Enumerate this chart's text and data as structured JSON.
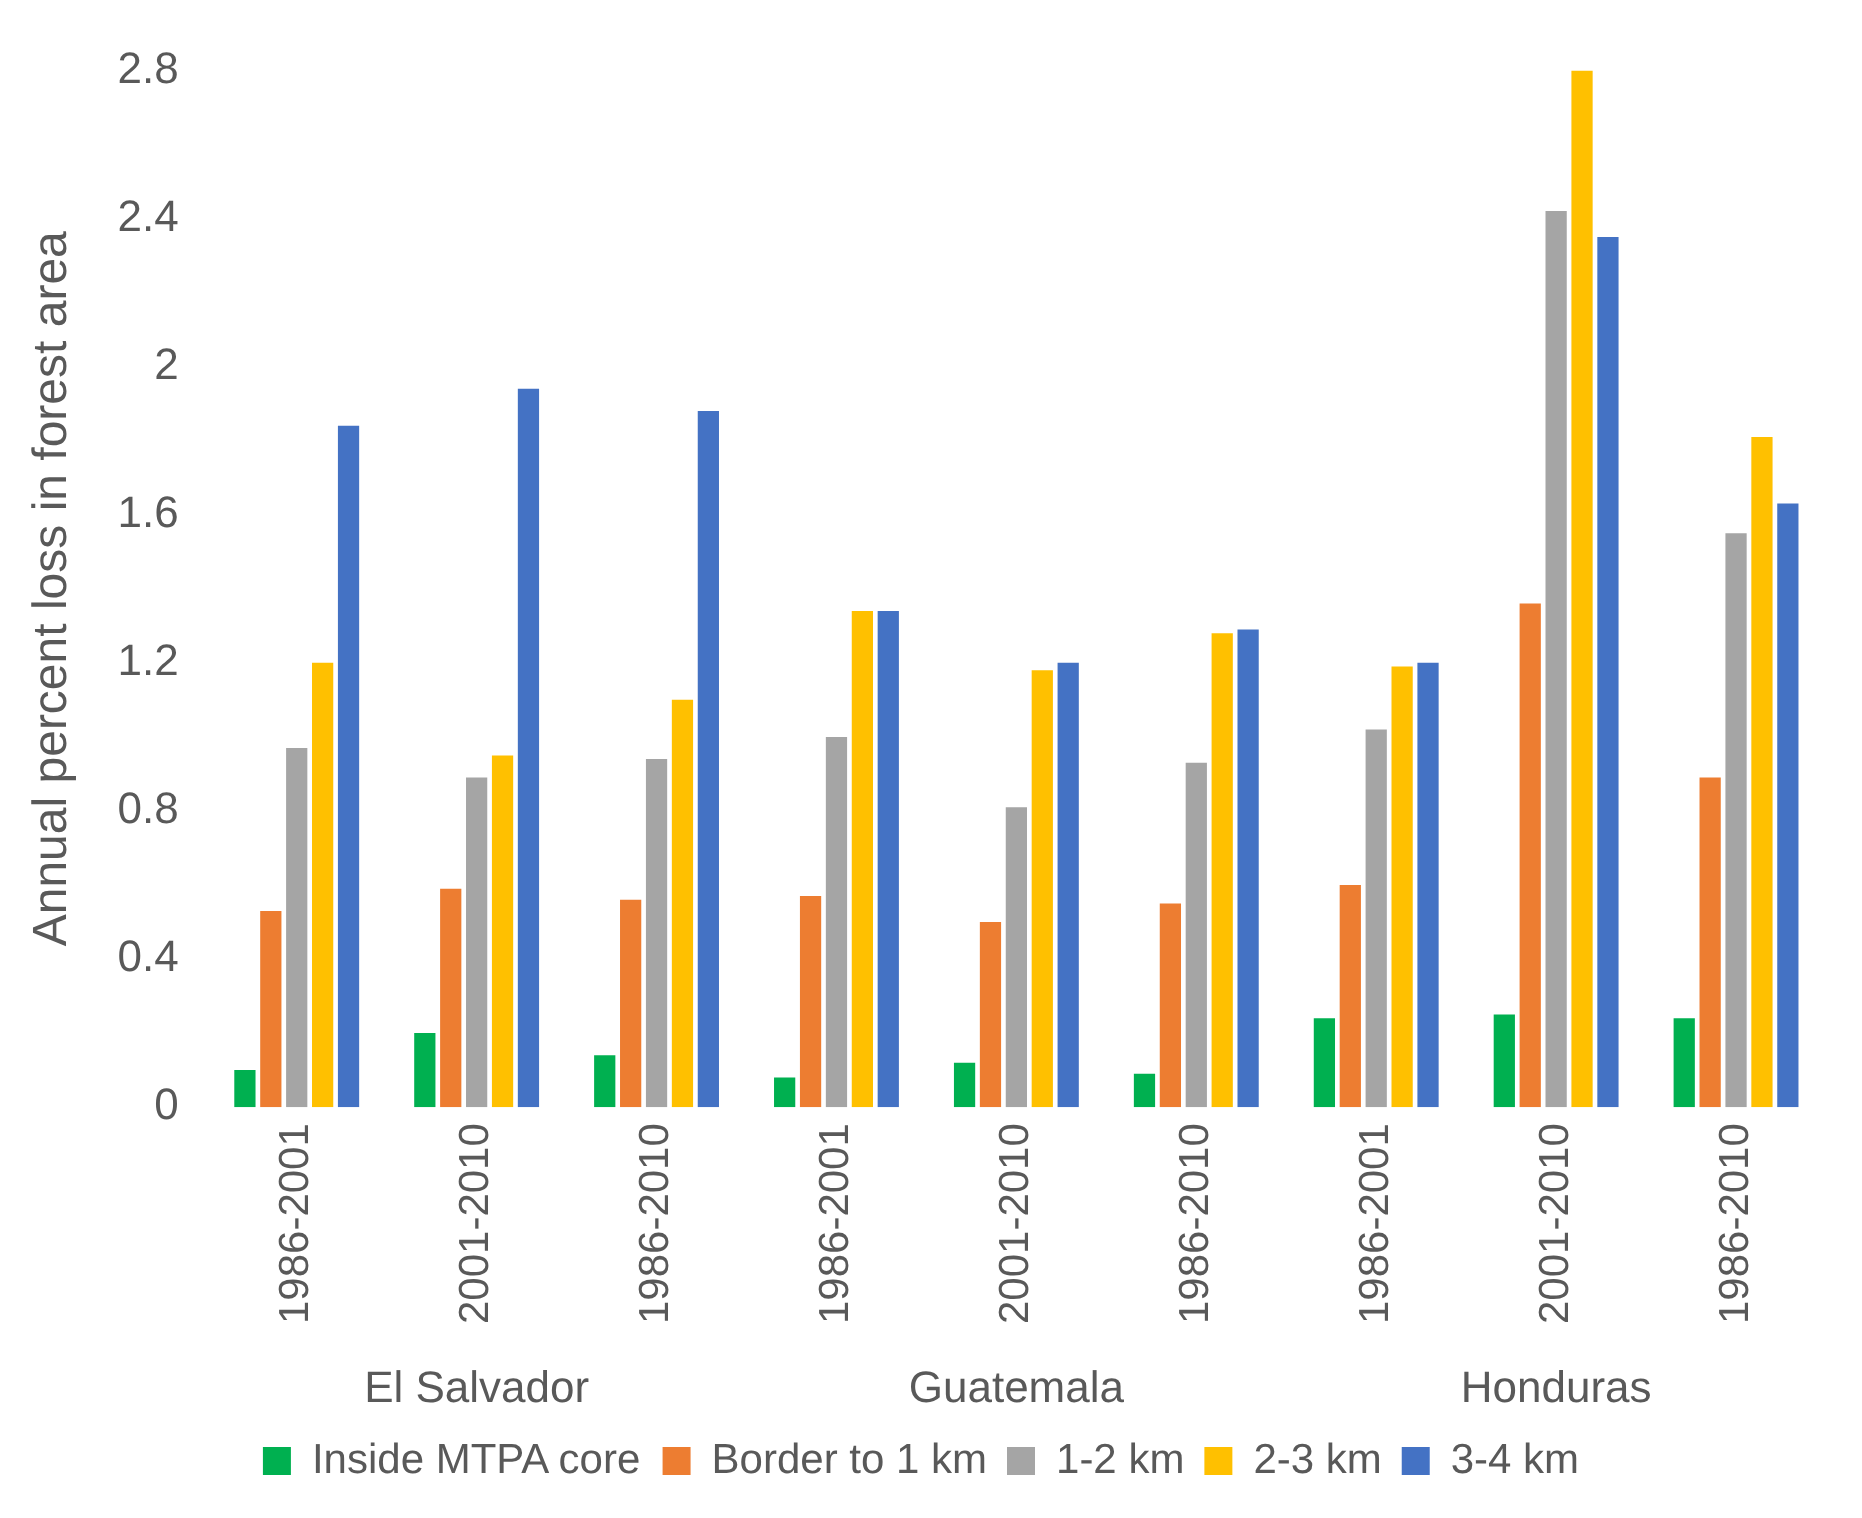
{
  "chart_data": {
    "type": "bar",
    "ylabel": "Annual percent loss in forest area",
    "categories": [
      "1986-2001",
      "2001-2010",
      "1986-2010",
      "1986-2001",
      "2001-2010",
      "1986-2010",
      "1986-2001",
      "2001-2010",
      "1986-2010"
    ],
    "series": [
      {
        "name": "Inside MTPA core",
        "color": "#00b050",
        "values": [
          0.1,
          0.2,
          0.14,
          0.08,
          0.12,
          0.09,
          0.24,
          0.25,
          0.24
        ]
      },
      {
        "name": "Border to 1 km",
        "color": "#ed7d31",
        "values": [
          0.53,
          0.59,
          0.56,
          0.57,
          0.5,
          0.55,
          0.6,
          1.36,
          0.89
        ]
      },
      {
        "name": "1-2 km",
        "color": "#a5a5a5",
        "values": [
          0.97,
          0.89,
          0.94,
          1.0,
          0.81,
          0.93,
          1.02,
          2.42,
          1.55
        ]
      },
      {
        "name": "2-3 km",
        "color": "#ffc000",
        "values": [
          1.2,
          0.95,
          1.1,
          1.34,
          1.18,
          1.28,
          1.19,
          2.8,
          1.81
        ]
      },
      {
        "name": "3-4 km",
        "color": "#4472c4",
        "values": [
          1.84,
          1.94,
          1.88,
          1.34,
          1.2,
          1.29,
          1.2,
          2.35,
          1.63
        ]
      }
    ],
    "annotations": [
      "El Salvador",
      "Guatemala",
      "Honduras"
    ],
    "ylim": [
      0,
      2.8
    ],
    "yticks": [
      0,
      0.4,
      0.8,
      1.2,
      1.6,
      2,
      2.4,
      2.8
    ],
    "grid": false,
    "legend": "bottom"
  }
}
